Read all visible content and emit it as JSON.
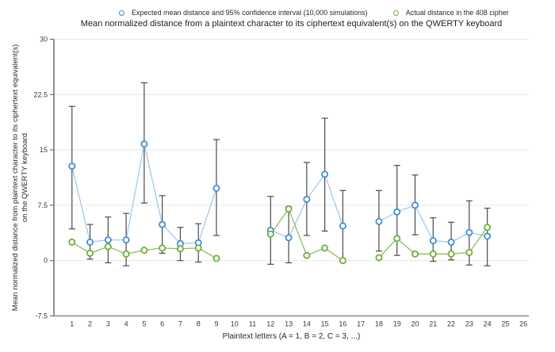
{
  "chart_data": {
    "type": "line",
    "title": "Mean normalized distance from a plaintext character to its ciphertext equivalent(s) on the QWERTY keyboard",
    "xlabel": "Plaintext letters (A = 1, B = 2, C = 3, ...)",
    "ylabel_line1": "Mean normalized distance from plaintext character to its ciphertext equivalent(s)",
    "ylabel_line2": "on  the QWERTY keyboard",
    "legend_position": "top",
    "grid": true,
    "xlim": [
      0,
      26.3
    ],
    "ylim": [
      -7.5,
      30
    ],
    "xticks": [
      1,
      2,
      3,
      4,
      5,
      6,
      7,
      8,
      9,
      10,
      11,
      12,
      13,
      14,
      15,
      16,
      17,
      18,
      19,
      20,
      21,
      22,
      23,
      24,
      25,
      26
    ],
    "yticks": [
      30,
      22.5,
      15,
      7.5,
      0,
      -7.5
    ],
    "colors": {
      "gridline": "#e7e7e7",
      "y_axis": "#6e6e6e",
      "x_axis": "#a0a0a0",
      "error_bar": "#4a4a4a",
      "tick_text": "#3a3a3a"
    },
    "series": [
      {
        "name": "Expected mean distance and 95% confidence interval (10,000 simulations)",
        "style": "line+marker+errorbar",
        "color": "#3e8fd8",
        "line_color": "#a5c9ec",
        "points": [
          {
            "x": 1,
            "mean": 12.8,
            "ci_low": 4.3,
            "ci_high": 20.9
          },
          {
            "x": 2,
            "mean": 2.5,
            "ci_low": 0.2,
            "ci_high": 4.9
          },
          {
            "x": 3,
            "mean": 2.8,
            "ci_low": -0.3,
            "ci_high": 5.9
          },
          {
            "x": 4,
            "mean": 2.8,
            "ci_low": -0.7,
            "ci_high": 6.4
          },
          {
            "x": 5,
            "mean": 15.8,
            "ci_low": 7.8,
            "ci_high": 24.1
          },
          {
            "x": 6,
            "mean": 4.9,
            "ci_low": 1.0,
            "ci_high": 8.8
          },
          {
            "x": 7,
            "mean": 2.3,
            "ci_low": 0.0,
            "ci_high": 4.5
          },
          {
            "x": 8,
            "mean": 2.4,
            "ci_low": -0.2,
            "ci_high": 5.0
          },
          {
            "x": 9,
            "mean": 9.8,
            "ci_low": 3.4,
            "ci_high": 16.4
          },
          {
            "x": 12,
            "mean": 4.1,
            "ci_low": -0.5,
            "ci_high": 8.7
          },
          {
            "x": 13,
            "mean": 3.1,
            "ci_low": -0.3,
            "ci_high": 7.3
          },
          {
            "x": 14,
            "mean": 8.3,
            "ci_low": 3.4,
            "ci_high": 13.3
          },
          {
            "x": 15,
            "mean": 11.7,
            "ci_low": 4.0,
            "ci_high": 19.3
          },
          {
            "x": 16,
            "mean": 4.7,
            "ci_low": -0.1,
            "ci_high": 9.5
          },
          {
            "x": 18,
            "mean": 5.3,
            "ci_low": 1.3,
            "ci_high": 9.5
          },
          {
            "x": 19,
            "mean": 6.6,
            "ci_low": 0.7,
            "ci_high": 12.9
          },
          {
            "x": 20,
            "mean": 7.5,
            "ci_low": 3.5,
            "ci_high": 11.6
          },
          {
            "x": 21,
            "mean": 2.7,
            "ci_low": -0.1,
            "ci_high": 5.8
          },
          {
            "x": 22,
            "mean": 2.5,
            "ci_low": 0.1,
            "ci_high": 5.2
          },
          {
            "x": 23,
            "mean": 3.8,
            "ci_low": -0.6,
            "ci_high": 8.1
          },
          {
            "x": 24,
            "mean": 3.3,
            "ci_low": -0.7,
            "ci_high": 7.1
          }
        ]
      },
      {
        "name": "Actual distance in the 408 cipher",
        "style": "line+marker",
        "color": "#6fae38",
        "line_color": "#8cc05a",
        "points": [
          {
            "x": 1,
            "y": 2.5
          },
          {
            "x": 2,
            "y": 1.0
          },
          {
            "x": 3,
            "y": 1.9
          },
          {
            "x": 4,
            "y": 0.9
          },
          {
            "x": 5,
            "y": 1.4
          },
          {
            "x": 6,
            "y": 1.7
          },
          {
            "x": 7,
            "y": 1.6
          },
          {
            "x": 8,
            "y": 1.7
          },
          {
            "x": 9,
            "y": 0.3
          },
          {
            "x": 12,
            "y": 3.6
          },
          {
            "x": 13,
            "y": 7.0
          },
          {
            "x": 14,
            "y": 0.7
          },
          {
            "x": 15,
            "y": 1.7
          },
          {
            "x": 16,
            "y": 0.0
          },
          {
            "x": 18,
            "y": 0.4
          },
          {
            "x": 19,
            "y": 3.0
          },
          {
            "x": 20,
            "y": 0.9
          },
          {
            "x": 21,
            "y": 0.9
          },
          {
            "x": 22,
            "y": 0.9
          },
          {
            "x": 23,
            "y": 1.1
          },
          {
            "x": 24,
            "y": 4.5
          }
        ]
      }
    ]
  }
}
